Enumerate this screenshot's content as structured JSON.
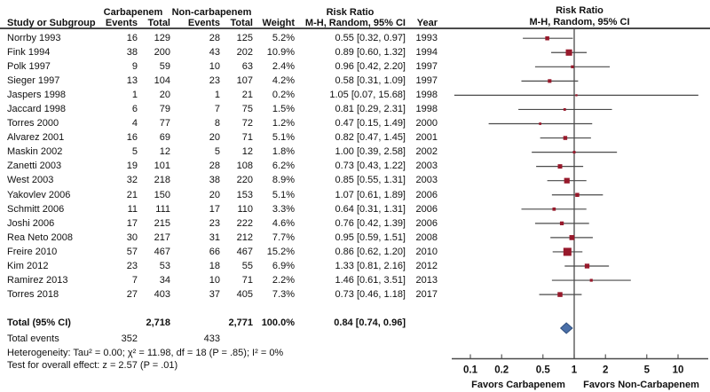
{
  "header": {
    "group1": "Carbapenem",
    "group2": "Non-carbapenem",
    "risk_ratio_col_title": "Risk Ratio",
    "col_study": "Study or Subgroup",
    "col_events": "Events",
    "col_total": "Total",
    "col_events2": "Events",
    "col_total2": "Total",
    "col_weight": "Weight",
    "col_mh": "M-H, Random, 95% CI",
    "col_year": "Year",
    "plot_title_line1": "Risk Ratio",
    "plot_title_line2": "M-H, Random, 95% CI"
  },
  "totals": {
    "label": "Total (95% CI)",
    "c_total": "2,718",
    "n_total": "2,771",
    "weight": "100.0%",
    "rr_text": "0.84 [0.74, 0.96]",
    "events_label": "Total events",
    "c_events": "352",
    "n_events": "433"
  },
  "footer": {
    "heterogeneity": "Heterogeneity: Tau² = 0.00; χ² = 11.98, df = 18 (P = .85); I² = 0%",
    "overall_effect": "Test for overall effect: z = 2.57 (P = .01)"
  },
  "axis": {
    "favors_left": "Favors Carbapenem",
    "favors_right": "Favors Non-Carbapenem"
  },
  "colors": {
    "square": "#97192b",
    "ci_line": "#4a4a4a",
    "diamond_fill": "#4a6fa8",
    "diamond_stroke": "#2f4e7d",
    "axis": "#4a4a4a"
  },
  "chart_data": {
    "type": "forest",
    "scale": "log",
    "effect_measure": "Risk Ratio, M-H, Random, 95% CI",
    "axis_ticks": [
      0.1,
      0.2,
      0.5,
      1,
      2,
      5,
      10
    ],
    "xlim": [
      0.065,
      20
    ],
    "studies": [
      {
        "name": "Norrby 1993",
        "c_events": 16,
        "c_total": 129,
        "n_events": 28,
        "n_total": 125,
        "weight": "5.2%",
        "weight_pct": 5.2,
        "rr_text": "0.55 [0.32, 0.97]",
        "rr": 0.55,
        "lo": 0.32,
        "hi": 0.97,
        "year": 1993
      },
      {
        "name": "Fink 1994",
        "c_events": 38,
        "c_total": 200,
        "n_events": 43,
        "n_total": 202,
        "weight": "10.9%",
        "weight_pct": 10.9,
        "rr_text": "0.89 [0.60, 1.32]",
        "rr": 0.89,
        "lo": 0.6,
        "hi": 1.32,
        "year": 1994
      },
      {
        "name": "Polk 1997",
        "c_events": 9,
        "c_total": 59,
        "n_events": 10,
        "n_total": 63,
        "weight": "2.4%",
        "weight_pct": 2.4,
        "rr_text": "0.96 [0.42, 2.20]",
        "rr": 0.96,
        "lo": 0.42,
        "hi": 2.2,
        "year": 1997
      },
      {
        "name": "Sieger 1997",
        "c_events": 13,
        "c_total": 104,
        "n_events": 23,
        "n_total": 107,
        "weight": "4.2%",
        "weight_pct": 4.2,
        "rr_text": "0.58 [0.31, 1.09]",
        "rr": 0.58,
        "lo": 0.31,
        "hi": 1.09,
        "year": 1997
      },
      {
        "name": "Jaspers 1998",
        "c_events": 1,
        "c_total": 20,
        "n_events": 1,
        "n_total": 21,
        "weight": "0.2%",
        "weight_pct": 0.2,
        "rr_text": "1.05 [0.07, 15.68]",
        "rr": 1.05,
        "lo": 0.07,
        "hi": 15.68,
        "year": 1998
      },
      {
        "name": "Jaccard 1998",
        "c_events": 6,
        "c_total": 79,
        "n_events": 7,
        "n_total": 75,
        "weight": "1.5%",
        "weight_pct": 1.5,
        "rr_text": "0.81 [0.29, 2.31]",
        "rr": 0.81,
        "lo": 0.29,
        "hi": 2.31,
        "year": 1998
      },
      {
        "name": "Torres 2000",
        "c_events": 4,
        "c_total": 77,
        "n_events": 8,
        "n_total": 72,
        "weight": "1.2%",
        "weight_pct": 1.2,
        "rr_text": "0.47 [0.15, 1.49]",
        "rr": 0.47,
        "lo": 0.15,
        "hi": 1.49,
        "year": 2000
      },
      {
        "name": "Alvarez 2001",
        "c_events": 16,
        "c_total": 69,
        "n_events": 20,
        "n_total": 71,
        "weight": "5.1%",
        "weight_pct": 5.1,
        "rr_text": "0.82 [0.47, 1.45]",
        "rr": 0.82,
        "lo": 0.47,
        "hi": 1.45,
        "year": 2001
      },
      {
        "name": "Maskin 2002",
        "c_events": 5,
        "c_total": 12,
        "n_events": 5,
        "n_total": 12,
        "weight": "1.8%",
        "weight_pct": 1.8,
        "rr_text": "1.00 [0.39, 2.58]",
        "rr": 1.0,
        "lo": 0.39,
        "hi": 2.58,
        "year": 2002
      },
      {
        "name": "Zanetti 2003",
        "c_events": 19,
        "c_total": 101,
        "n_events": 28,
        "n_total": 108,
        "weight": "6.2%",
        "weight_pct": 6.2,
        "rr_text": "0.73 [0.43, 1.22]",
        "rr": 0.73,
        "lo": 0.43,
        "hi": 1.22,
        "year": 2003
      },
      {
        "name": "West 2003",
        "c_events": 32,
        "c_total": 218,
        "n_events": 38,
        "n_total": 220,
        "weight": "8.9%",
        "weight_pct": 8.9,
        "rr_text": "0.85 [0.55, 1.31]",
        "rr": 0.85,
        "lo": 0.55,
        "hi": 1.31,
        "year": 2003
      },
      {
        "name": "Yakovlev 2006",
        "c_events": 21,
        "c_total": 150,
        "n_events": 20,
        "n_total": 153,
        "weight": "5.1%",
        "weight_pct": 5.1,
        "rr_text": "1.07 [0.61, 1.89]",
        "rr": 1.07,
        "lo": 0.61,
        "hi": 1.89,
        "year": 2006
      },
      {
        "name": "Schmitt 2006",
        "c_events": 11,
        "c_total": 111,
        "n_events": 17,
        "n_total": 110,
        "weight": "3.3%",
        "weight_pct": 3.3,
        "rr_text": "0.64 [0.31, 1.31]",
        "rr": 0.64,
        "lo": 0.31,
        "hi": 1.31,
        "year": 2006
      },
      {
        "name": "Joshi 2006",
        "c_events": 17,
        "c_total": 215,
        "n_events": 23,
        "n_total": 222,
        "weight": "4.6%",
        "weight_pct": 4.6,
        "rr_text": "0.76 [0.42, 1.39]",
        "rr": 0.76,
        "lo": 0.42,
        "hi": 1.39,
        "year": 2006
      },
      {
        "name": "Rea Neto 2008",
        "c_events": 30,
        "c_total": 217,
        "n_events": 31,
        "n_total": 212,
        "weight": "7.7%",
        "weight_pct": 7.7,
        "rr_text": "0.95 [0.59, 1.51]",
        "rr": 0.95,
        "lo": 0.59,
        "hi": 1.51,
        "year": 2008
      },
      {
        "name": "Freire 2010",
        "c_events": 57,
        "c_total": 467,
        "n_events": 66,
        "n_total": 467,
        "weight": "15.2%",
        "weight_pct": 15.2,
        "rr_text": "0.86 [0.62, 1.20]",
        "rr": 0.86,
        "lo": 0.62,
        "hi": 1.2,
        "year": 2010
      },
      {
        "name": "Kim 2012",
        "c_events": 23,
        "c_total": 53,
        "n_events": 18,
        "n_total": 55,
        "weight": "6.9%",
        "weight_pct": 6.9,
        "rr_text": "1.33 [0.81, 2.16]",
        "rr": 1.33,
        "lo": 0.81,
        "hi": 2.16,
        "year": 2012
      },
      {
        "name": "Ramirez 2013",
        "c_events": 7,
        "c_total": 34,
        "n_events": 10,
        "n_total": 71,
        "weight": "2.2%",
        "weight_pct": 2.2,
        "rr_text": "1.46 [0.61, 3.51]",
        "rr": 1.46,
        "lo": 0.61,
        "hi": 3.51,
        "year": 2013
      },
      {
        "name": "Torres 2018",
        "c_events": 27,
        "c_total": 403,
        "n_events": 37,
        "n_total": 405,
        "weight": "7.3%",
        "weight_pct": 7.3,
        "rr_text": "0.73 [0.46, 1.18]",
        "rr": 0.73,
        "lo": 0.46,
        "hi": 1.18,
        "year": 2017
      }
    ],
    "total": {
      "rr": 0.84,
      "lo": 0.74,
      "hi": 0.96
    },
    "favors_left": "Favors Carbapenem",
    "favors_right": "Favors Non-Carbapenem"
  }
}
